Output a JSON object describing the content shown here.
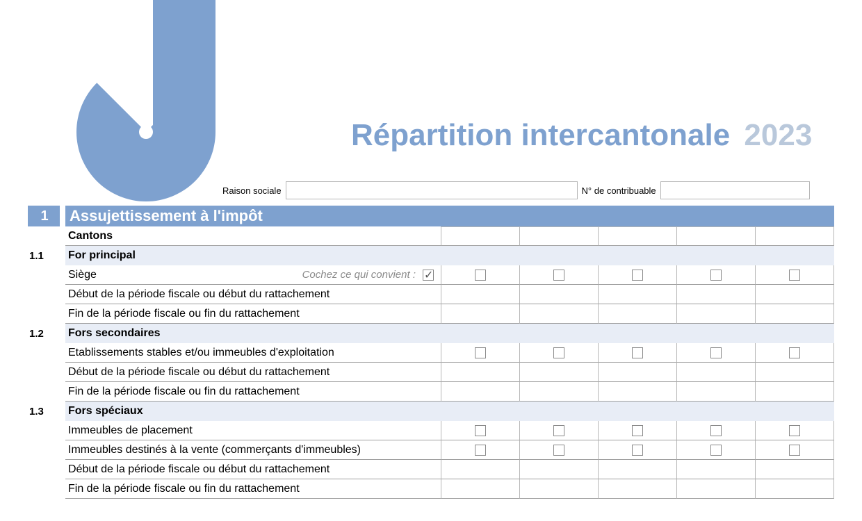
{
  "colors": {
    "accent": "#7ea1cf",
    "accent_light": "#b9c8db",
    "pale": "#e8edf6",
    "border": "#b6b6b6",
    "row_border": "#9e9e9e",
    "hint": "#8a8a8a",
    "bg": "#ffffff"
  },
  "title": {
    "main": "Répartition intercantonale",
    "year": "2023",
    "fontsize": 44
  },
  "header": {
    "raison_label": "Raison sociale",
    "raison_value": "",
    "contrib_label": "N° de contribuable",
    "contrib_value": ""
  },
  "section": {
    "num": "1",
    "title": "Assujettissement à l'impôt"
  },
  "columns_count": 5,
  "rows": {
    "cantons": "Cantons",
    "s11_num": "1.1",
    "s11_title": "For principal",
    "siege": "Siège",
    "hint": "Cochez ce qui convient :",
    "debut": "Début de la période fiscale ou début du rattachement",
    "fin": "Fin de la période fiscale ou fin du rattachement",
    "s12_num": "1.2",
    "s12_title": "Fors secondaires",
    "etab": "Etablissements stables et/ou immeubles d'exploitation",
    "s13_num": "1.3",
    "s13_title": "Fors spéciaux",
    "imm_plac": "Immeubles de placement",
    "imm_vente": "Immeubles destinés à la vente (commerçants d'immeubles)"
  },
  "checkbox_states": {
    "siege_main": true,
    "siege_cols": [
      false,
      false,
      false,
      false,
      false
    ],
    "etab_cols": [
      false,
      false,
      false,
      false,
      false
    ],
    "imm_plac_cols": [
      false,
      false,
      false,
      false,
      false
    ],
    "imm_vente_cols": [
      false,
      false,
      false,
      false,
      false
    ]
  }
}
